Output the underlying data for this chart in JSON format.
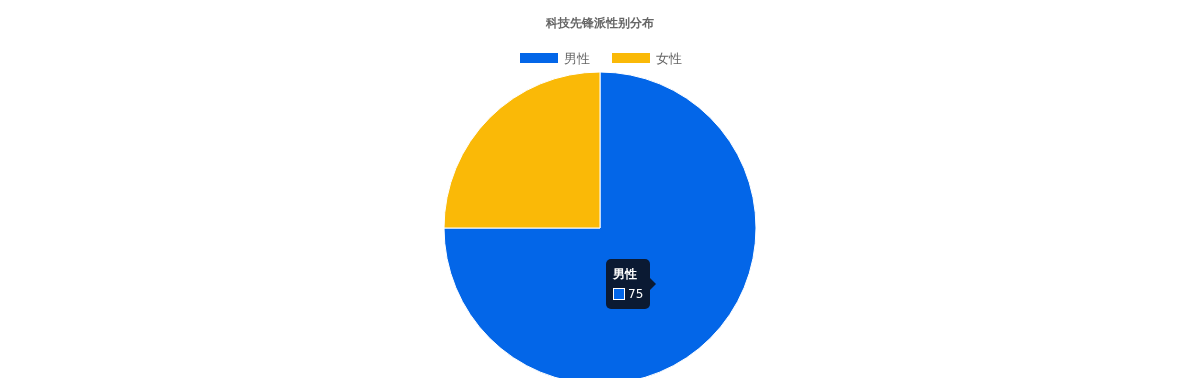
{
  "chart_data": {
    "type": "pie",
    "title": "科技先锋派性别分布",
    "categories": [
      "男性",
      "女性"
    ],
    "values": [
      75,
      25
    ],
    "colors": [
      "#0366e8",
      "#fab907"
    ],
    "value_labels": [
      "75",
      null
    ],
    "legend": "top"
  }
}
